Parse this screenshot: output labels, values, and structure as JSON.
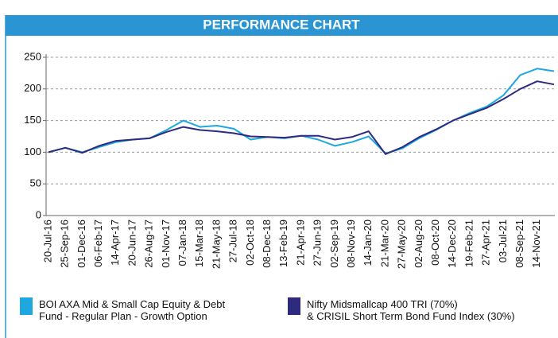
{
  "chart_data": {
    "type": "line",
    "title": "PERFORMANCE CHART",
    "categories": [
      "20-Jul-16",
      "25-Sep-16",
      "01-Dec-16",
      "06-Feb-17",
      "14-Apr-17",
      "20-Jun-17",
      "26-Aug-17",
      "01-Nov-17",
      "07-Jan-18",
      "15-Mar-18",
      "21-May-18",
      "27-Jul-18",
      "02-Oct-18",
      "08-Dec-18",
      "13-Feb-19",
      "21-Apr-19",
      "27-Jun-19",
      "02-Sep-19",
      "08-Nov-19",
      "14-Jan-20",
      "21-Mar-20",
      "27-May-20",
      "02-Aug-20",
      "08-Oct-20",
      "14-Dec-20",
      "19-Feb-21",
      "27-Apr-21",
      "03-Jul-21",
      "08-Sep-21",
      "14-Nov-21",
      null
    ],
    "series": [
      {
        "name": "BOI AXA Mid & Small Cap Equity & Debt Fund - Regular Plan - Growth Option",
        "color": "#1fa8e0",
        "values": [
          100,
          107,
          100,
          108,
          116,
          120,
          122,
          135,
          150,
          140,
          142,
          137,
          120,
          124,
          122,
          126,
          120,
          110,
          116,
          125,
          98,
          106,
          122,
          135,
          150,
          162,
          172,
          190,
          222,
          232,
          228
        ]
      },
      {
        "name": "Nifty Midsmallcap 400 TRI (70%) & CRISIL Short Term Bond Fund Index (30%)",
        "color": "#2e2b7f",
        "values": [
          100,
          107,
          99,
          110,
          118,
          120,
          122,
          132,
          140,
          135,
          133,
          130,
          125,
          124,
          123,
          126,
          126,
          120,
          124,
          133,
          97,
          108,
          124,
          136,
          150,
          160,
          170,
          184,
          200,
          212,
          207
        ]
      }
    ],
    "ylim": [
      0,
      250
    ],
    "yticks": [
      0,
      50,
      100,
      150,
      200,
      250
    ],
    "grid": true
  }
}
